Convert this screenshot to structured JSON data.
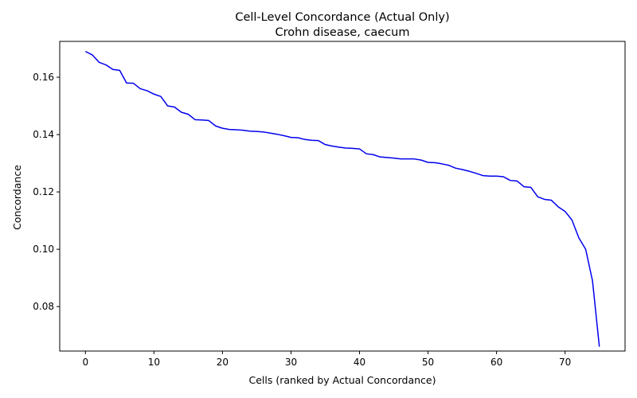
{
  "chart_data": {
    "type": "line",
    "title": "Cell-Level Concordance (Actual Only)",
    "subtitle": "Crohn disease, caecum",
    "xlabel": "Cells (ranked by Actual Concordance)",
    "ylabel": "Concordance",
    "xlim": [
      -3.75,
      78.75
    ],
    "ylim": [
      0.0645,
      0.1725
    ],
    "xticks": [
      0,
      10,
      20,
      30,
      40,
      50,
      60,
      70
    ],
    "yticks": [
      0.08,
      0.1,
      0.12,
      0.14,
      0.16
    ],
    "ytick_labels": [
      "0.08",
      "0.10",
      "0.12",
      "0.14",
      "0.16"
    ],
    "grid": false,
    "line_color": "#0000ee",
    "series": [
      {
        "x": [
          0,
          1,
          2,
          3,
          4,
          5,
          6,
          7,
          8,
          9,
          10,
          11,
          12,
          13,
          14,
          15,
          16,
          17,
          18,
          19,
          20,
          21,
          22,
          23,
          24,
          25,
          26,
          27,
          28,
          29,
          30,
          31,
          32,
          33,
          34,
          35,
          36,
          37,
          38,
          39,
          40,
          41,
          42,
          43,
          44,
          45,
          46,
          47,
          48,
          49,
          50,
          51,
          52,
          53,
          54,
          55,
          56,
          57,
          58,
          59,
          60,
          61,
          62,
          63,
          64,
          65,
          66,
          67,
          68,
          69,
          70,
          71,
          72,
          73,
          74,
          75
        ],
        "values": [
          0.169,
          0.1678,
          0.1652,
          0.1643,
          0.1627,
          0.1624,
          0.158,
          0.1579,
          0.156,
          0.1553,
          0.1541,
          0.1533,
          0.15,
          0.1496,
          0.1478,
          0.1471,
          0.1452,
          0.1451,
          0.1449,
          0.143,
          0.1422,
          0.1418,
          0.1417,
          0.1415,
          0.1412,
          0.1411,
          0.1409,
          0.1405,
          0.1401,
          0.1396,
          0.139,
          0.1389,
          0.1383,
          0.138,
          0.1379,
          0.1365,
          0.136,
          0.1356,
          0.1353,
          0.1352,
          0.135,
          0.1333,
          0.133,
          0.1322,
          0.132,
          0.1318,
          0.1315,
          0.1315,
          0.1315,
          0.1311,
          0.1303,
          0.1302,
          0.1298,
          0.1293,
          0.1283,
          0.1278,
          0.1272,
          0.1265,
          0.1257,
          0.1255,
          0.1255,
          0.1253,
          0.124,
          0.1238,
          0.1218,
          0.1216,
          0.1183,
          0.1174,
          0.1171,
          0.1148,
          0.1132,
          0.1102,
          0.104,
          0.1,
          0.089,
          0.066
        ]
      }
    ]
  }
}
